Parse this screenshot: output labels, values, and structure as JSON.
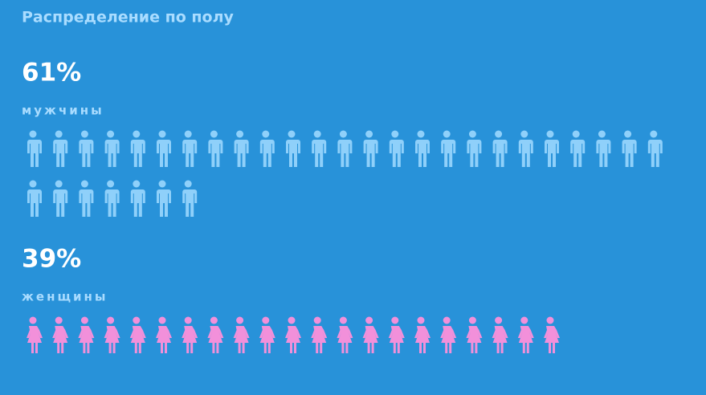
{
  "chart_data": {
    "type": "pictogram",
    "title": "Распределение по полу",
    "categories": [
      "мужчины",
      "женщины"
    ],
    "values": [
      61,
      39
    ],
    "value_labels": [
      "61%",
      "39%"
    ],
    "icons": [
      32,
      21
    ],
    "colors": [
      "#8fd0fa",
      "#f290da"
    ]
  }
}
